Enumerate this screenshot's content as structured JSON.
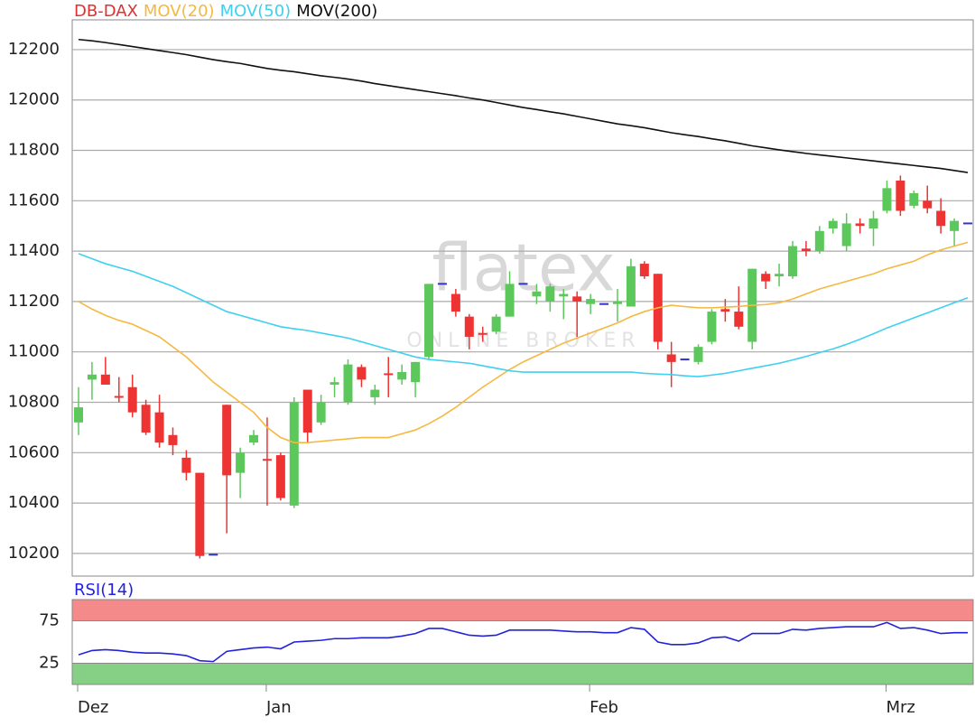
{
  "chart_data": [
    {
      "type": "candlestick",
      "name": "DB-DAX",
      "color": "#e03030",
      "up_color": "#5cc85c",
      "down_color": "#ee3333",
      "flat_color": "#3333cc",
      "open": [
        10720,
        10890,
        10910,
        10825,
        10860,
        10790,
        10760,
        10670,
        10580,
        10520,
        10195,
        10790,
        10520,
        10640,
        10575,
        10590,
        10390,
        10850,
        10720,
        10870,
        10800,
        10940,
        10820,
        10915,
        10890,
        10880,
        10980,
        11270,
        11230,
        11140,
        11075,
        11080,
        11140,
        11270,
        11220,
        11200,
        11220,
        11220,
        11190,
        11190,
        11190,
        11180,
        11350,
        11310,
        10990,
        10970,
        10960,
        11040,
        11170,
        11160,
        11040,
        11310,
        11300,
        11300,
        11410,
        11400,
        11490,
        11420,
        11510,
        11490,
        11560,
        11680,
        11580,
        11600,
        11560,
        11480,
        11510
      ],
      "high": [
        10860,
        10960,
        10980,
        10900,
        10910,
        10810,
        10830,
        10700,
        10610,
        10520,
        10200,
        10790,
        10620,
        10690,
        10740,
        10600,
        10820,
        10850,
        10830,
        10900,
        10970,
        10950,
        10870,
        10980,
        10950,
        10960,
        11270,
        11275,
        11250,
        11150,
        11100,
        11150,
        11320,
        11275,
        11270,
        11270,
        11250,
        11240,
        11230,
        11195,
        11250,
        11370,
        11360,
        11310,
        11040,
        10975,
        11030,
        11170,
        11210,
        11260,
        11330,
        11320,
        11350,
        11440,
        11440,
        11500,
        11530,
        11550,
        11530,
        11560,
        11680,
        11700,
        11640,
        11660,
        11610,
        11530,
        11515
      ],
      "low": [
        10670,
        10810,
        10870,
        10800,
        10740,
        10670,
        10620,
        10590,
        10490,
        10180,
        10190,
        10280,
        10420,
        10630,
        10390,
        10410,
        10380,
        10640,
        10710,
        10820,
        10790,
        10860,
        10790,
        10820,
        10870,
        10820,
        10970,
        11265,
        11140,
        11010,
        11040,
        11070,
        11140,
        11265,
        11190,
        11160,
        11130,
        11060,
        11150,
        11185,
        11120,
        11180,
        11290,
        11010,
        10860,
        10965,
        10950,
        11030,
        11120,
        11090,
        11010,
        11250,
        11260,
        11290,
        11380,
        11390,
        11470,
        11400,
        11470,
        11420,
        11550,
        11540,
        11570,
        11550,
        11470,
        11420,
        11505
      ],
      "close": [
        10780,
        10910,
        10870,
        10820,
        10760,
        10680,
        10640,
        10630,
        10520,
        10190,
        10195,
        10510,
        10600,
        10670,
        10570,
        10420,
        10800,
        10680,
        10800,
        10880,
        10950,
        10890,
        10850,
        10910,
        10920,
        10960,
        11270,
        11270,
        11160,
        11060,
        11070,
        11140,
        11270,
        11270,
        11240,
        11260,
        11230,
        11200,
        11210,
        11190,
        11200,
        11340,
        11300,
        11040,
        10960,
        10970,
        11020,
        11160,
        11160,
        11100,
        11330,
        11280,
        11310,
        11420,
        11400,
        11480,
        11520,
        11510,
        11500,
        11530,
        11650,
        11560,
        11630,
        11570,
        11500,
        11520,
        11510
      ],
      "series": [
        {
          "name": "MOV(20)",
          "color": "#f5b841",
          "values": [
            11200,
            11170,
            11145,
            11125,
            11110,
            11085,
            11060,
            11020,
            10980,
            10930,
            10880,
            10840,
            10800,
            10760,
            10700,
            10660,
            10640,
            10640,
            10645,
            10650,
            10655,
            10660,
            10660,
            10660,
            10675,
            10690,
            10715,
            10745,
            10780,
            10820,
            10860,
            10895,
            10930,
            10960,
            10985,
            11010,
            11035,
            11055,
            11075,
            11095,
            11115,
            11140,
            11160,
            11175,
            11185,
            11180,
            11175,
            11175,
            11178,
            11180,
            11185,
            11188,
            11195,
            11210,
            11230,
            11250,
            11265,
            11280,
            11295,
            11310,
            11330,
            11345,
            11360,
            11385,
            11405,
            11420,
            11435
          ]
        },
        {
          "name": "MOV(50)",
          "color": "#3fd0f0",
          "values": [
            11390,
            11370,
            11350,
            11335,
            11320,
            11300,
            11280,
            11260,
            11235,
            11210,
            11185,
            11160,
            11145,
            11130,
            11115,
            11100,
            11092,
            11085,
            11075,
            11065,
            11055,
            11040,
            11025,
            11010,
            10995,
            10980,
            10970,
            10965,
            10960,
            10955,
            10945,
            10935,
            10925,
            10920,
            10920,
            10920,
            10920,
            10920,
            10920,
            10920,
            10920,
            10920,
            10915,
            10912,
            10910,
            10905,
            10902,
            10908,
            10915,
            10925,
            10935,
            10945,
            10955,
            10968,
            10982,
            10997,
            11012,
            11030,
            11050,
            11072,
            11095,
            11115,
            11135,
            11155,
            11175,
            11195,
            11215
          ]
        },
        {
          "name": "MOV(200)",
          "color": "#111111",
          "values": [
            12240,
            12235,
            12228,
            12220,
            12212,
            12204,
            12196,
            12188,
            12180,
            12170,
            12160,
            12152,
            12145,
            12135,
            12125,
            12118,
            12112,
            12104,
            12096,
            12090,
            12083,
            12075,
            12065,
            12057,
            12049,
            12041,
            12033,
            12025,
            12017,
            12008,
            12000,
            11990,
            11980,
            11970,
            11962,
            11953,
            11945,
            11935,
            11925,
            11915,
            11905,
            11898,
            11890,
            11880,
            11870,
            11862,
            11855,
            11846,
            11838,
            11828,
            11818,
            11810,
            11802,
            11795,
            11788,
            11782,
            11776,
            11770,
            11764,
            11758,
            11752,
            11746,
            11740,
            11734,
            11728,
            11720,
            11712
          ]
        }
      ],
      "ylim": [
        10110,
        12318
      ],
      "yticks": [
        10200,
        10400,
        10600,
        10800,
        11000,
        11200,
        11400,
        11600,
        11800,
        12000,
        12200
      ],
      "grid": true,
      "watermark": {
        "logo": "flatex",
        "tagline": "ONLINE BROKER"
      }
    },
    {
      "type": "line",
      "categories": [
        "Dez",
        null,
        null,
        null,
        null,
        null,
        null,
        null,
        null,
        null,
        null,
        null,
        null,
        null,
        "Jan",
        null,
        null,
        null,
        null,
        null,
        null,
        null,
        null,
        null,
        null,
        null,
        null,
        null,
        null,
        null,
        null,
        null,
        null,
        null,
        null,
        null,
        null,
        null,
        "Feb",
        null,
        null,
        null,
        null,
        null,
        null,
        null,
        null,
        null,
        null,
        null,
        null,
        null,
        null,
        null,
        null,
        null,
        null,
        null,
        null,
        null,
        "Mrz",
        null,
        null,
        null,
        null,
        null,
        null
      ],
      "series": [
        {
          "name": "RSI(14)",
          "color": "#2222dd",
          "values": [
            35,
            40,
            41,
            40,
            38,
            37,
            37,
            36,
            34,
            28,
            27,
            39,
            41,
            43,
            44,
            42,
            50,
            51,
            52,
            54,
            54,
            55,
            55,
            55,
            57,
            60,
            66,
            66,
            62,
            58,
            57,
            58,
            64,
            64,
            64,
            64,
            63,
            62,
            62,
            61,
            61,
            67,
            65,
            50,
            47,
            47,
            49,
            55,
            56,
            51,
            60,
            60,
            60,
            65,
            64,
            66,
            67,
            68,
            68,
            68,
            73,
            66,
            67,
            64,
            60,
            61,
            61
          ]
        }
      ],
      "ylim": [
        0,
        100
      ],
      "yticks": [
        25,
        75
      ],
      "bands": [
        {
          "from": 75,
          "to": 100,
          "color": "#f48a8a"
        },
        {
          "from": 0,
          "to": 25,
          "color": "#86d086"
        }
      ]
    }
  ]
}
